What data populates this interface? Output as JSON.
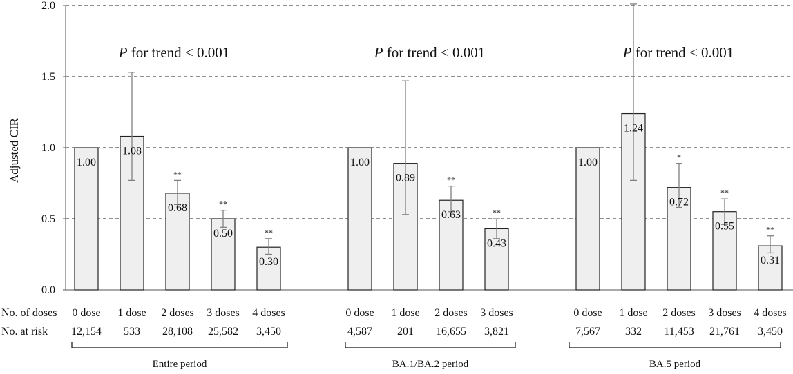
{
  "chart_data": {
    "type": "bar",
    "ylabel": "Adjusted CIR",
    "ylim": [
      0,
      2.0
    ],
    "yticks": [
      "0.0",
      "0.5",
      "1.0",
      "1.5",
      "2.0"
    ],
    "grid": "dashed horizontal at 0.5, 1.0, 1.5, 2.0",
    "colors": {
      "bar_fill": "#efefef",
      "bar_stroke": "#222222",
      "error_bar": "#808080",
      "grid": "#222222"
    },
    "row_labels": {
      "doses": "No. of doses",
      "risk": "No. at risk"
    },
    "groups": [
      {
        "name": "Entire period",
        "trend_prefix": "P",
        "trend_text": " for trend < 0.001",
        "categories": [
          "0 dose",
          "1 dose",
          "2 doses",
          "3 doses",
          "4 doses"
        ],
        "values": [
          1.0,
          1.08,
          0.68,
          0.5,
          0.3
        ],
        "value_labels": [
          "1.00",
          "1.08",
          "0.68",
          "0.50",
          "0.30"
        ],
        "ci_low": [
          null,
          0.77,
          0.6,
          0.44,
          0.25
        ],
        "ci_high": [
          null,
          1.53,
          0.77,
          0.56,
          0.36
        ],
        "significance": [
          "",
          "",
          "**",
          "**",
          "**"
        ],
        "at_risk": [
          "12,154",
          "533",
          "28,108",
          "25,582",
          "3,450"
        ]
      },
      {
        "name": "BA.1/BA.2 period",
        "trend_prefix": "P",
        "trend_text": " for trend < 0.001",
        "categories": [
          "0 dose",
          "1 dose",
          "2 doses",
          "3 doses"
        ],
        "values": [
          1.0,
          0.89,
          0.63,
          0.43
        ],
        "value_labels": [
          "1.00",
          "0.89",
          "0.63",
          "0.43"
        ],
        "ci_low": [
          null,
          0.53,
          0.55,
          0.36
        ],
        "ci_high": [
          null,
          1.47,
          0.73,
          0.5
        ],
        "significance": [
          "",
          "",
          "**",
          "**"
        ],
        "at_risk": [
          "4,587",
          "201",
          "16,655",
          "3,821"
        ]
      },
      {
        "name": "BA.5 period",
        "trend_prefix": "P",
        "trend_text": " for trend < 0.001",
        "categories": [
          "0 dose",
          "1 dose",
          "2 doses",
          "3 doses",
          "4 doses"
        ],
        "values": [
          1.0,
          1.24,
          0.72,
          0.55,
          0.31
        ],
        "value_labels": [
          "1.00",
          "1.24",
          "0.72",
          "0.55",
          "0.31"
        ],
        "ci_low": [
          null,
          0.77,
          0.58,
          0.46,
          0.26
        ],
        "ci_high": [
          null,
          2.01,
          0.89,
          0.64,
          0.38
        ],
        "significance": [
          "",
          "",
          "*",
          "**",
          "**"
        ],
        "at_risk": [
          "7,567",
          "332",
          "11,453",
          "21,761",
          "3,450"
        ]
      }
    ]
  }
}
